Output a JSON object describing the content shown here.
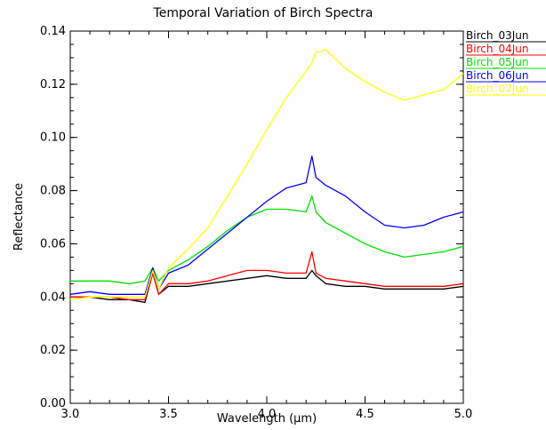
{
  "chart_data": {
    "type": "line",
    "title": "Temporal Variation of Birch Spectra",
    "xlabel": "Wavelength (μm)",
    "ylabel": "Reflectance",
    "xlim": [
      3.0,
      5.0
    ],
    "ylim": [
      0.0,
      0.14
    ],
    "xticks": [
      3.0,
      3.5,
      4.0,
      4.5,
      5.0
    ],
    "xtick_labels": [
      "3.0",
      "3.5",
      "4.0",
      "4.5",
      "5.0"
    ],
    "yticks": [
      0.0,
      0.02,
      0.04,
      0.06,
      0.08,
      0.1,
      0.12,
      0.14
    ],
    "ytick_labels": [
      "0.00",
      "0.02",
      "0.04",
      "0.06",
      "0.08",
      "0.10",
      "0.12",
      "0.14"
    ],
    "grid": false,
    "legend_position": "outside-top-right",
    "x": [
      3.0,
      3.1,
      3.2,
      3.3,
      3.38,
      3.42,
      3.45,
      3.5,
      3.6,
      3.7,
      3.8,
      3.9,
      4.0,
      4.1,
      4.2,
      4.23,
      4.25,
      4.3,
      4.4,
      4.5,
      4.6,
      4.7,
      4.8,
      4.9,
      5.0
    ],
    "series": [
      {
        "name": "Birch_03Jun",
        "color": "#000000",
        "values": [
          0.04,
          0.04,
          0.039,
          0.039,
          0.038,
          0.049,
          0.041,
          0.044,
          0.044,
          0.045,
          0.046,
          0.047,
          0.048,
          0.047,
          0.047,
          0.05,
          0.048,
          0.045,
          0.044,
          0.044,
          0.043,
          0.043,
          0.043,
          0.043,
          0.044
        ]
      },
      {
        "name": "Birch_04Jun",
        "color": "#ff0000",
        "values": [
          0.04,
          0.04,
          0.04,
          0.039,
          0.039,
          0.049,
          0.041,
          0.045,
          0.045,
          0.046,
          0.048,
          0.05,
          0.05,
          0.049,
          0.049,
          0.057,
          0.049,
          0.047,
          0.046,
          0.045,
          0.044,
          0.044,
          0.044,
          0.044,
          0.045
        ]
      },
      {
        "name": "Birch_05Jun",
        "color": "#00e000",
        "values": [
          0.046,
          0.046,
          0.046,
          0.045,
          0.046,
          0.051,
          0.046,
          0.05,
          0.054,
          0.059,
          0.065,
          0.07,
          0.073,
          0.073,
          0.072,
          0.078,
          0.072,
          0.068,
          0.064,
          0.06,
          0.057,
          0.055,
          0.056,
          0.057,
          0.059
        ]
      },
      {
        "name": "Birch_06Jun",
        "color": "#0000ff",
        "values": [
          0.041,
          0.042,
          0.041,
          0.041,
          0.041,
          0.051,
          0.043,
          0.049,
          0.052,
          0.058,
          0.064,
          0.07,
          0.076,
          0.081,
          0.083,
          0.093,
          0.085,
          0.082,
          0.078,
          0.072,
          0.067,
          0.066,
          0.067,
          0.07,
          0.072
        ]
      },
      {
        "name": "Birch_07Jun",
        "color": "#ffff00",
        "values": [
          0.039,
          0.04,
          0.04,
          0.04,
          0.04,
          0.05,
          0.043,
          0.051,
          0.058,
          0.066,
          0.078,
          0.09,
          0.103,
          0.115,
          0.125,
          0.128,
          0.132,
          0.133,
          0.126,
          0.121,
          0.117,
          0.114,
          0.116,
          0.118,
          0.124
        ]
      }
    ]
  }
}
